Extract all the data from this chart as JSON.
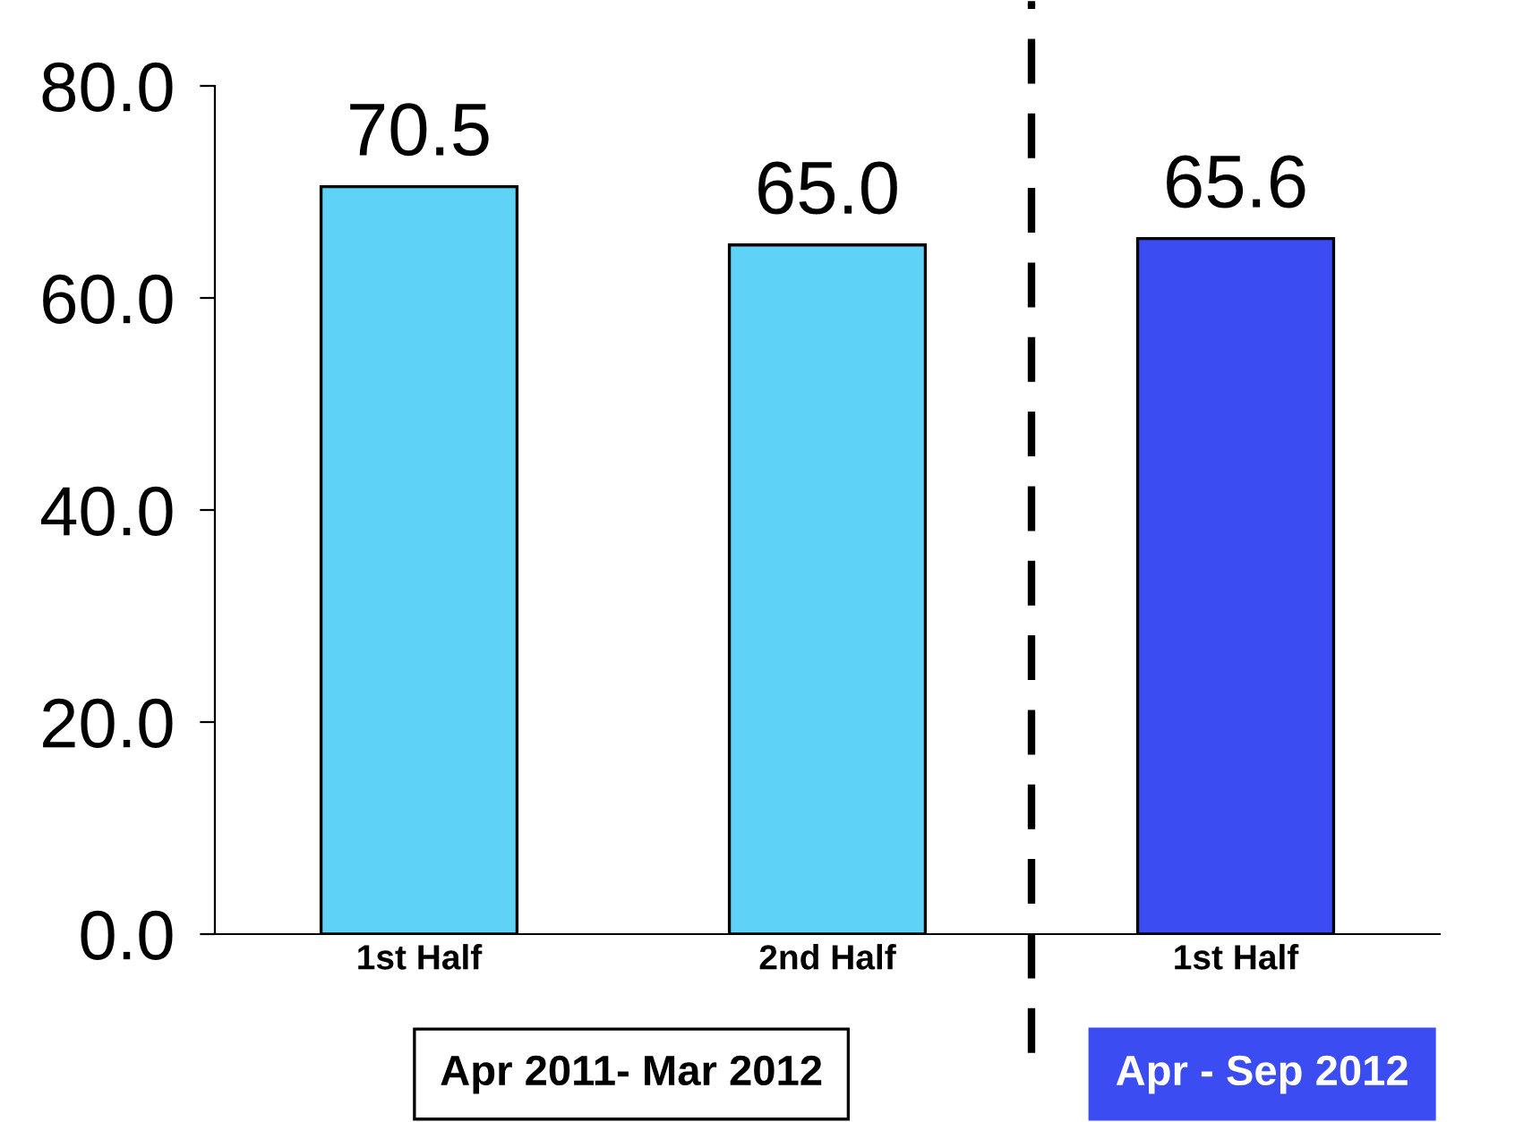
{
  "chart_data": {
    "type": "bar",
    "categories": [
      "1st Half",
      "2nd Half",
      "1st Half"
    ],
    "values": [
      70.5,
      65.0,
      65.6
    ],
    "colors": [
      "#5fd3f7",
      "#5fd3f7",
      "#3a4cf2"
    ],
    "value_labels": [
      "70.5",
      "65.0",
      "65.6"
    ],
    "ylim": [
      0,
      80
    ],
    "yticks": [
      {
        "value": 0,
        "label": "0.0"
      },
      {
        "value": 20,
        "label": "20.0"
      },
      {
        "value": 40,
        "label": "40.0"
      },
      {
        "value": 60,
        "label": "60.0"
      },
      {
        "value": 80,
        "label": "80.0"
      }
    ],
    "grid": false,
    "legend": false,
    "annotations": [
      "Apr 2011- Mar 2012",
      "Apr - Sep 2012"
    ]
  }
}
